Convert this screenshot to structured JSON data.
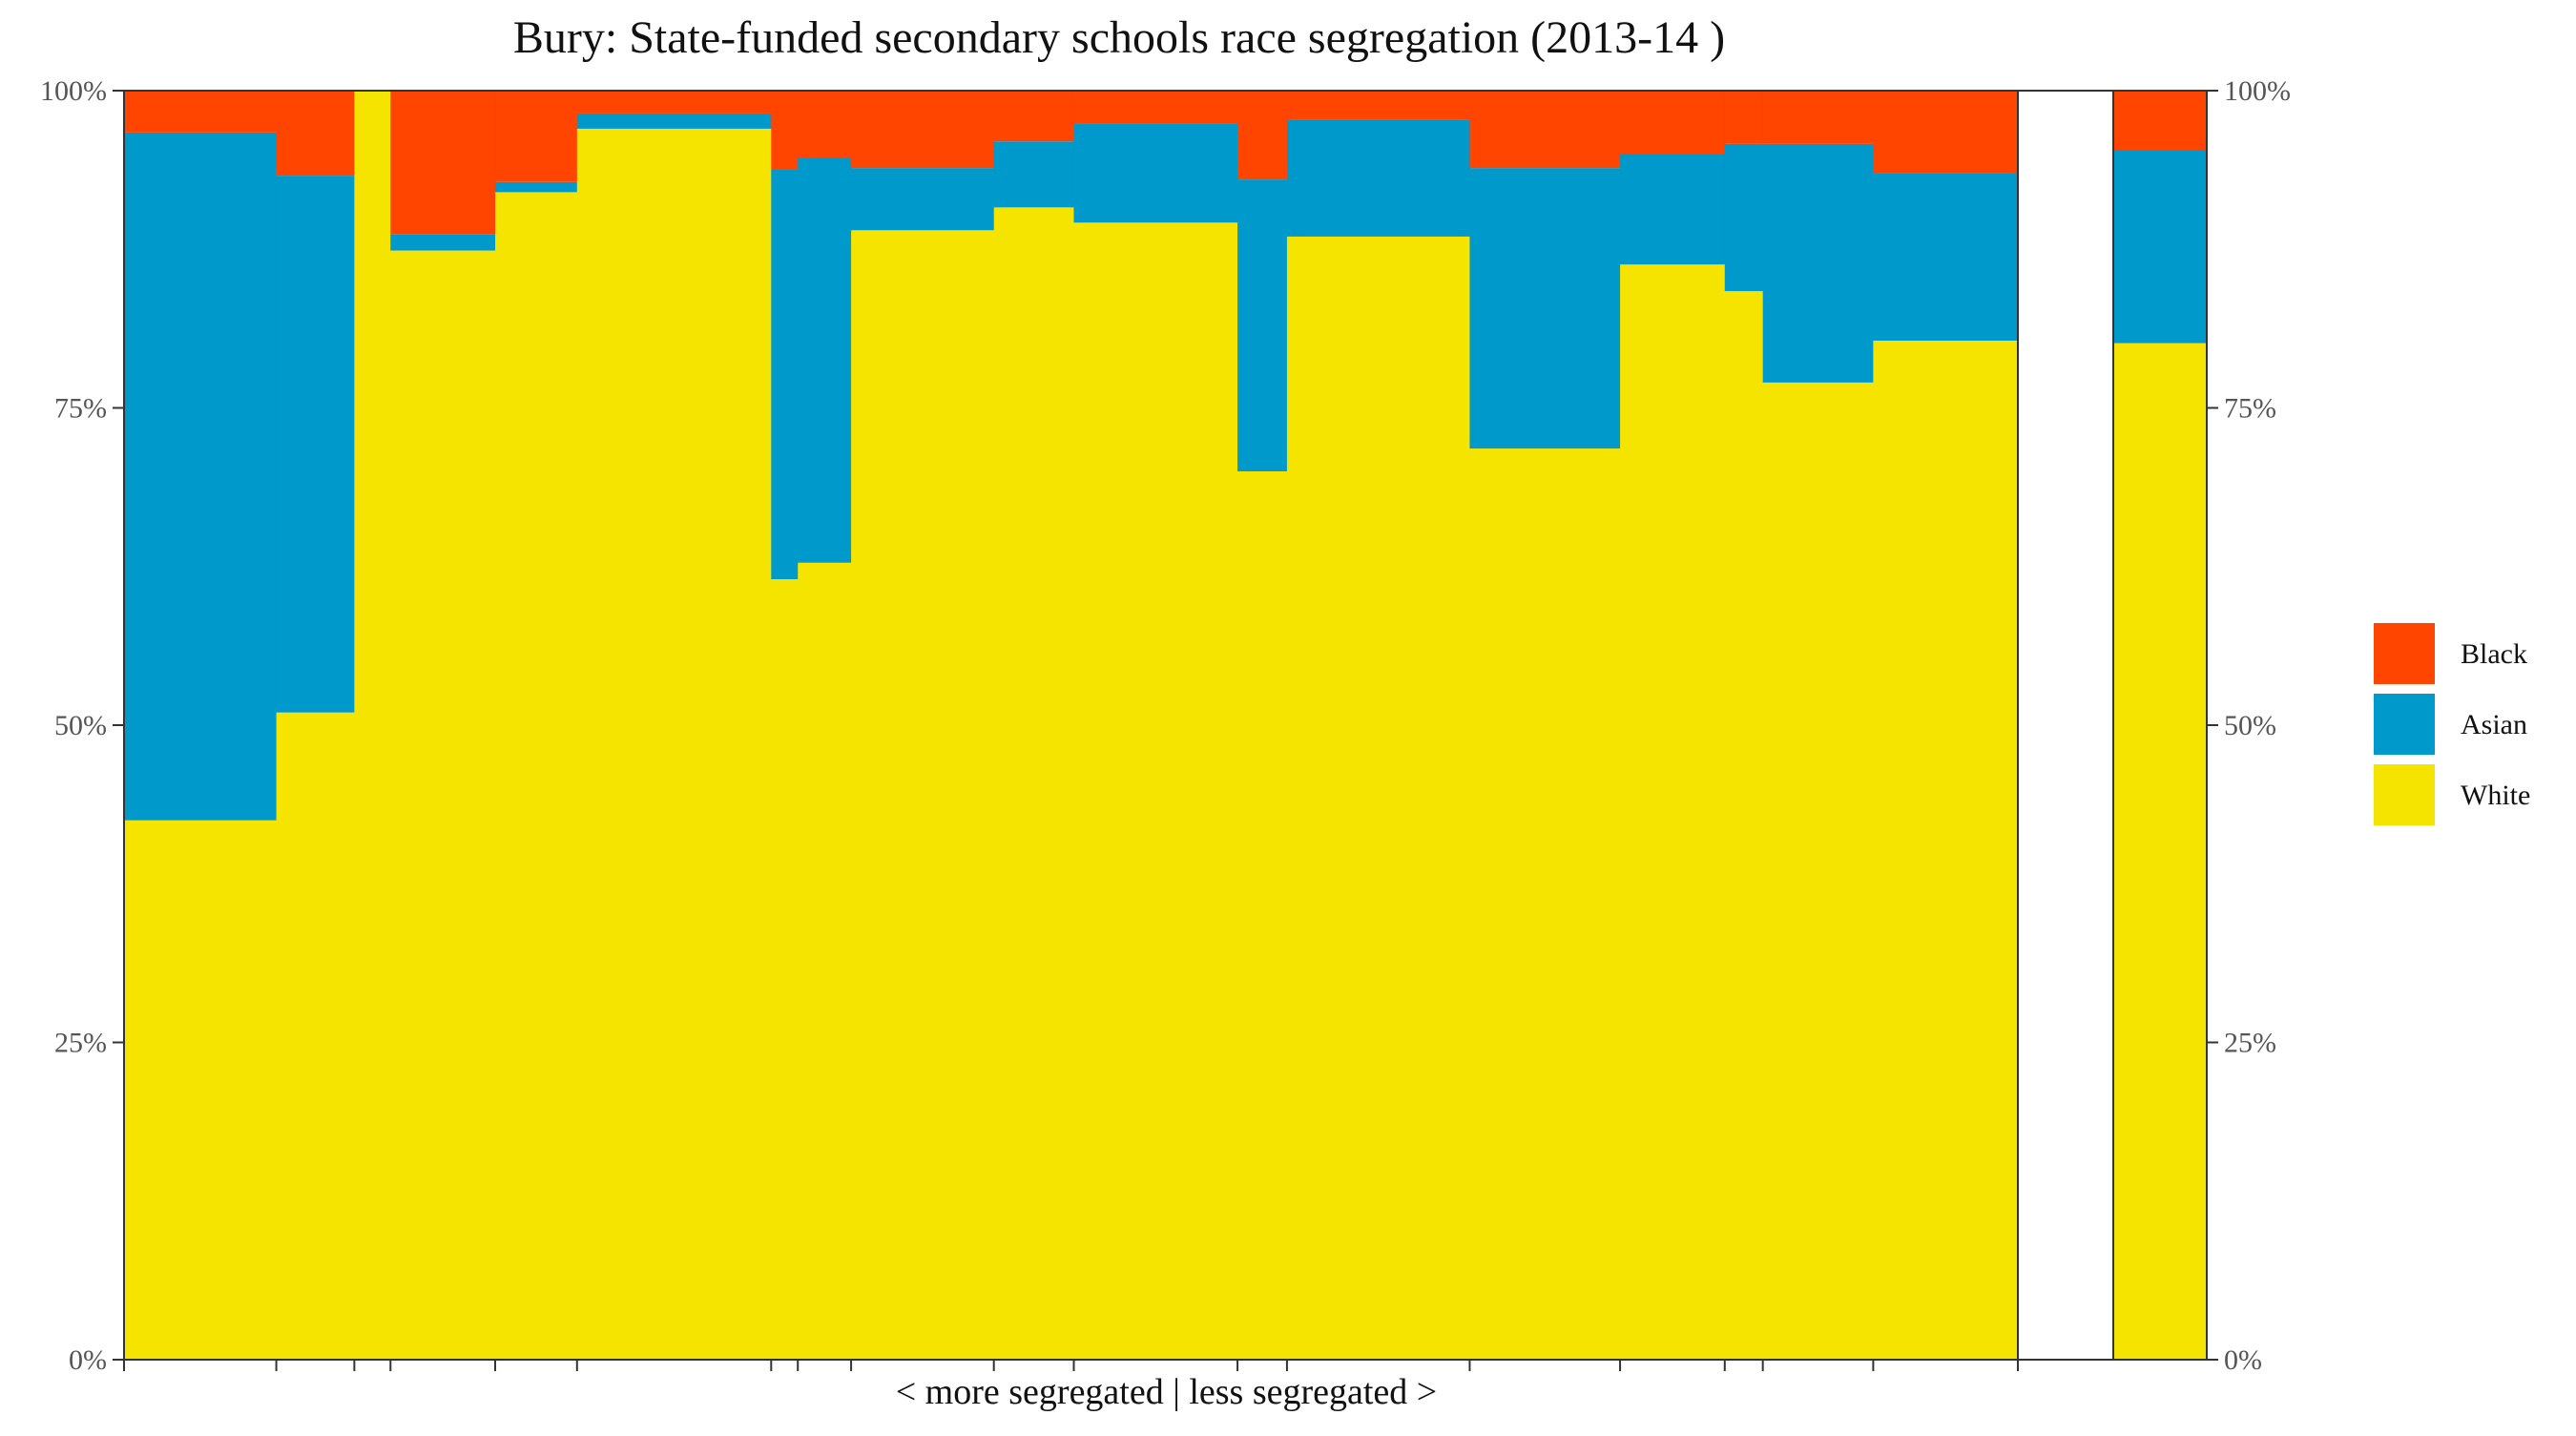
{
  "chart_data": {
    "type": "bar",
    "title": "Bury: State-funded secondary schools race segregation (2013-14 )",
    "xlabel": "< more segregated | less segregated >",
    "ylabel": "",
    "ylim": [
      0,
      100
    ],
    "y_ticks": [
      "0%",
      "25%",
      "50%",
      "75%",
      "100%"
    ],
    "stacking": "percent, variable-width bars",
    "legend": {
      "position": "right",
      "entries": [
        {
          "name": "Black",
          "color": "#FF4500"
        },
        {
          "name": "Asian",
          "color": "#0099CC"
        },
        {
          "name": "White",
          "color": "#F5E400"
        }
      ]
    },
    "schools": [
      {
        "share_of_pupils": 8.0,
        "white": 42.5,
        "asian": 54.2,
        "black": 3.3
      },
      {
        "share_of_pupils": 4.1,
        "white": 51.0,
        "asian": 42.3,
        "black": 6.7
      },
      {
        "share_of_pupils": 1.9,
        "white": 100.0,
        "asian": 0.0,
        "black": 0.0
      },
      {
        "share_of_pupils": 5.5,
        "white": 87.4,
        "asian": 1.3,
        "black": 11.3
      },
      {
        "share_of_pupils": 4.3,
        "white": 92.0,
        "asian": 0.8,
        "black": 7.2
      },
      {
        "share_of_pupils": 10.2,
        "white": 97.0,
        "asian": 1.2,
        "black": 1.8
      },
      {
        "share_of_pupils": 1.4,
        "white": 61.5,
        "asian": 32.3,
        "black": 6.2
      },
      {
        "share_of_pupils": 2.8,
        "white": 62.8,
        "asian": 31.9,
        "black": 5.3
      },
      {
        "share_of_pupils": 7.5,
        "white": 89.0,
        "asian": 4.9,
        "black": 6.1
      },
      {
        "share_of_pupils": 4.2,
        "white": 90.8,
        "asian": 5.2,
        "black": 4.0
      },
      {
        "share_of_pupils": 8.6,
        "white": 89.6,
        "asian": 7.8,
        "black": 2.6
      },
      {
        "share_of_pupils": 2.6,
        "white": 70.0,
        "asian": 23.0,
        "black": 7.0
      },
      {
        "share_of_pupils": 9.6,
        "white": 88.5,
        "asian": 9.2,
        "black": 2.3
      },
      {
        "share_of_pupils": 7.9,
        "white": 71.8,
        "asian": 22.1,
        "black": 6.1
      },
      {
        "share_of_pupils": 5.5,
        "white": 86.3,
        "asian": 8.7,
        "black": 5.0
      },
      {
        "share_of_pupils": 2.0,
        "white": 84.2,
        "asian": 11.6,
        "black": 4.2
      },
      {
        "share_of_pupils": 5.8,
        "white": 77.0,
        "asian": 18.8,
        "black": 4.2
      },
      {
        "share_of_pupils": 7.6,
        "white": 80.3,
        "asian": 13.2,
        "black": 6.5
      }
    ],
    "total_bar": {
      "white": 80.1,
      "asian": 15.2,
      "black": 4.7
    }
  }
}
